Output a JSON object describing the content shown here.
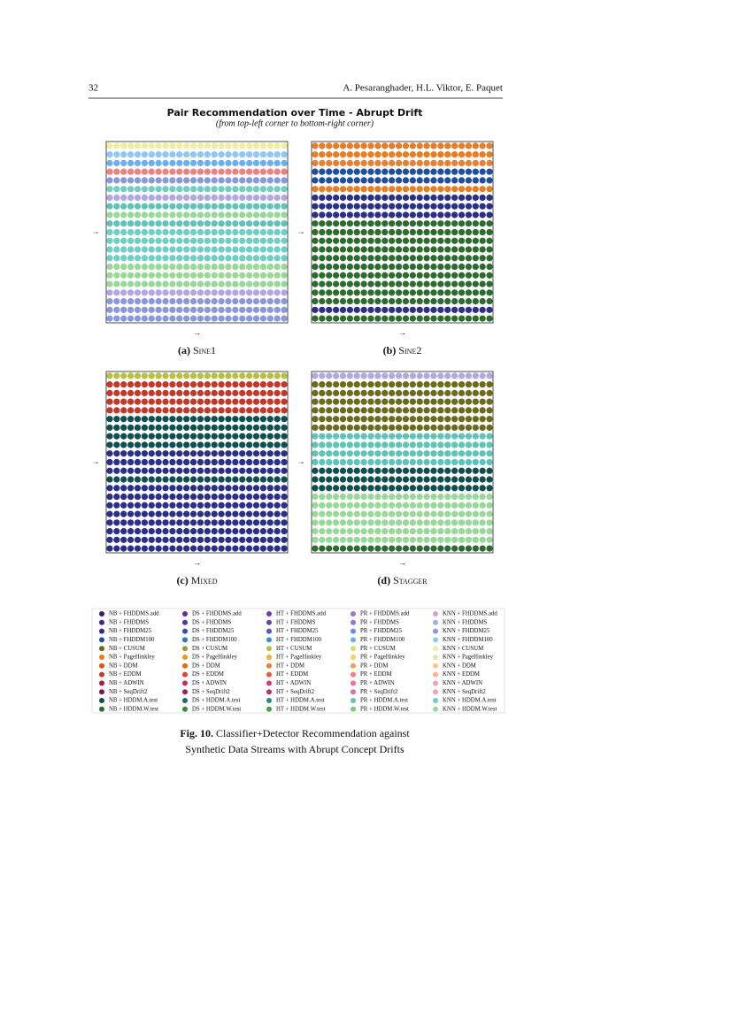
{
  "header": {
    "page": "32",
    "authors": "A. Pesaranghader, H.L. Viktor, E. Paquet"
  },
  "figure": {
    "title": "Pair Recommendation over Time - Abrupt Drift",
    "subtitle": "(from top-left corner to bottom-right corner)",
    "x_label": "→",
    "y_label": "→",
    "panels": [
      {
        "label": "(a)",
        "name": "Sine1",
        "rows": [
          52,
          51,
          39,
          43,
          50,
          58,
          49,
          46,
          59,
          46,
          58,
          58,
          58,
          58,
          59,
          59,
          59,
          49,
          50,
          50,
          50
        ]
      },
      {
        "label": "(b)",
        "name": "Sine2",
        "rows": [
          5,
          5,
          30,
          3,
          3,
          5,
          2,
          2,
          2,
          11,
          11,
          11,
          11,
          11,
          11,
          11,
          11,
          11,
          11,
          2,
          11
        ]
      },
      {
        "label": "(c)",
        "name": "Mixed",
        "rows": [
          28,
          7,
          7,
          7,
          7,
          10,
          10,
          10,
          10,
          2,
          2,
          2,
          10,
          2,
          2,
          2,
          2,
          2,
          2,
          2,
          2
        ]
      },
      {
        "label": "(d)",
        "name": "Stagger",
        "rows": [
          49,
          4,
          4,
          4,
          4,
          4,
          4,
          46,
          46,
          46,
          46,
          10,
          10,
          10,
          59,
          59,
          59,
          59,
          59,
          59,
          11
        ]
      }
    ],
    "legend": [
      {
        "label": "NB + FHDDMS.add",
        "color": "#3d1a6e"
      },
      {
        "label": "NB + FHDDMS",
        "color": "#3a2a80"
      },
      {
        "label": "NB + FHDDM25",
        "color": "#2b2f85"
      },
      {
        "label": "NB + FHDDM100",
        "color": "#1f4ea0"
      },
      {
        "label": "NB + CUSUM",
        "color": "#6b6a1d"
      },
      {
        "label": "NB + PageHinkley",
        "color": "#e87d24"
      },
      {
        "label": "NB + DDM",
        "color": "#d4561c"
      },
      {
        "label": "NB + EDDM",
        "color": "#c0392b"
      },
      {
        "label": "NB + ADWIN",
        "color": "#a01f3f"
      },
      {
        "label": "NB + SeqDrift2",
        "color": "#7d1650"
      },
      {
        "label": "NB + HDDM.A.test",
        "color": "#0f4f4f"
      },
      {
        "label": "NB + HDDM.W.test",
        "color": "#2e6b2e"
      },
      {
        "label": "DS + FHDDMS.add",
        "color": "#6a2a9a"
      },
      {
        "label": "DS + FHDDMS",
        "color": "#4a3aa0"
      },
      {
        "label": "DS + FHDDM25",
        "color": "#3a4ab0"
      },
      {
        "label": "DS + FHDDM100",
        "color": "#2a78c0"
      },
      {
        "label": "DS + CUSUM",
        "color": "#9a9a30"
      },
      {
        "label": "DS + PageHinkley",
        "color": "#f0952a"
      },
      {
        "label": "DS + DDM",
        "color": "#e06a20"
      },
      {
        "label": "DS + EDDM",
        "color": "#d04a3a"
      },
      {
        "label": "DS + ADWIN",
        "color": "#c0305a"
      },
      {
        "label": "DS + SeqDrift2",
        "color": "#a02060"
      },
      {
        "label": "DS + HDDM.A.test",
        "color": "#1a6a6a"
      },
      {
        "label": "DS + HDDM.W.test",
        "color": "#3a8a3a"
      },
      {
        "label": "HT + FHDDMS.add",
        "color": "#7a3aa8"
      },
      {
        "label": "HT + FHDDMS",
        "color": "#5a4ab0"
      },
      {
        "label": "HT + FHDDM25",
        "color": "#4a5ac0"
      },
      {
        "label": "HT + FHDDM100",
        "color": "#3a90d0"
      },
      {
        "label": "HT + CUSUM",
        "color": "#b8c040"
      },
      {
        "label": "HT + PageHinkley",
        "color": "#f5b030"
      },
      {
        "label": "HT + DDM",
        "color": "#e88030"
      },
      {
        "label": "HT + EDDM",
        "color": "#e06040"
      },
      {
        "label": "HT + ADWIN",
        "color": "#d04070"
      },
      {
        "label": "HT + SeqDrift2",
        "color": "#c03070"
      },
      {
        "label": "HT + HDDM.A.test",
        "color": "#2a8a8a"
      },
      {
        "label": "HT + HDDM.W.test",
        "color": "#4aa04a"
      },
      {
        "label": "PR + FHDDMS.add",
        "color": "#b070c0"
      },
      {
        "label": "PR + FHDDMS",
        "color": "#8a7ad0"
      },
      {
        "label": "PR + FHDDM25",
        "color": "#6a8ae0"
      },
      {
        "label": "PR + FHDDM100",
        "color": "#6ab0f0"
      },
      {
        "label": "PR + CUSUM",
        "color": "#d8e070"
      },
      {
        "label": "PR + PageHinkley",
        "color": "#f8d060"
      },
      {
        "label": "PR + DDM",
        "color": "#f0a060"
      },
      {
        "label": "PR + EDDM",
        "color": "#f08080"
      },
      {
        "label": "PR + ADWIN",
        "color": "#f070a0"
      },
      {
        "label": "PR + SeqDrift2",
        "color": "#e070a0"
      },
      {
        "label": "PR + HDDM.A.test",
        "color": "#5fc4b8"
      },
      {
        "label": "PR + HDDM.W.test",
        "color": "#80c880"
      },
      {
        "label": "KNN + FHDDMS.add",
        "color": "#d8a0d8"
      },
      {
        "label": "KNN + FHDDMS",
        "color": "#b0a8e0"
      },
      {
        "label": "KNN + FHDDM25",
        "color": "#8a9ad8"
      },
      {
        "label": "KNN + FHDDM100",
        "color": "#90c8f0"
      },
      {
        "label": "KNN + CUSUM",
        "color": "#eef0a0"
      },
      {
        "label": "KNN + PageHinkley",
        "color": "#f8e0a0"
      },
      {
        "label": "KNN + DDM",
        "color": "#f8c890"
      },
      {
        "label": "KNN + EDDM",
        "color": "#f8b0a0"
      },
      {
        "label": "KNN + ADWIN",
        "color": "#f8a0b0"
      },
      {
        "label": "KNN + SeqDrift2",
        "color": "#f0a0c0"
      },
      {
        "label": "KNN + HDDM.A.test",
        "color": "#70cfc4"
      },
      {
        "label": "KNN + HDDM.W.test",
        "color": "#9ad89a"
      }
    ],
    "caption": {
      "label": "Fig. 10.",
      "lines": [
        "Classifier+Detector Recommendation against",
        "Synthetic Data Streams with Abrupt Concept Drifts"
      ]
    }
  }
}
